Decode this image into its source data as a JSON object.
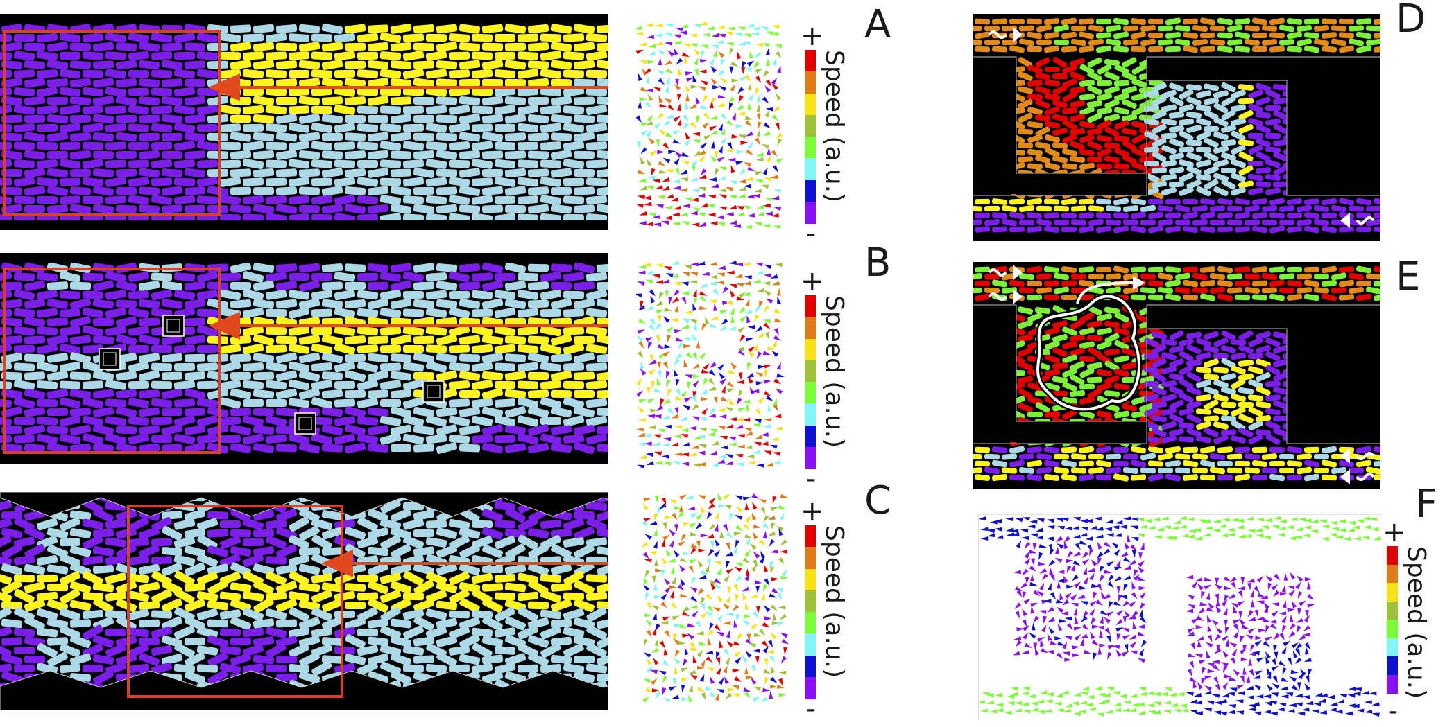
{
  "panels": [
    {
      "id": "A",
      "letter": "A"
    },
    {
      "id": "B",
      "letter": "B"
    },
    {
      "id": "C",
      "letter": "C"
    },
    {
      "id": "D",
      "letter": "D"
    },
    {
      "id": "E",
      "letter": "E"
    },
    {
      "id": "F",
      "letter": "F"
    }
  ],
  "colorbar": {
    "label": "Speed (a.u.)",
    "max_label": "+",
    "min_label": "-",
    "colors_top_to_bottom": [
      "#e00000",
      "#e07b1a",
      "#f7e21a",
      "#9ec13a",
      "#7dfa3a",
      "#7ff5f5",
      "#1010d0",
      "#8a10f5"
    ]
  },
  "cell_colors": {
    "purple": "#7a1ee8",
    "lightblue": "#add8e6",
    "yellow": "#fff420",
    "red": "#e00000",
    "orange": "#e08a1a",
    "green": "#7ef03a",
    "arrow": "#e0481e",
    "box": "#d9402a"
  }
}
